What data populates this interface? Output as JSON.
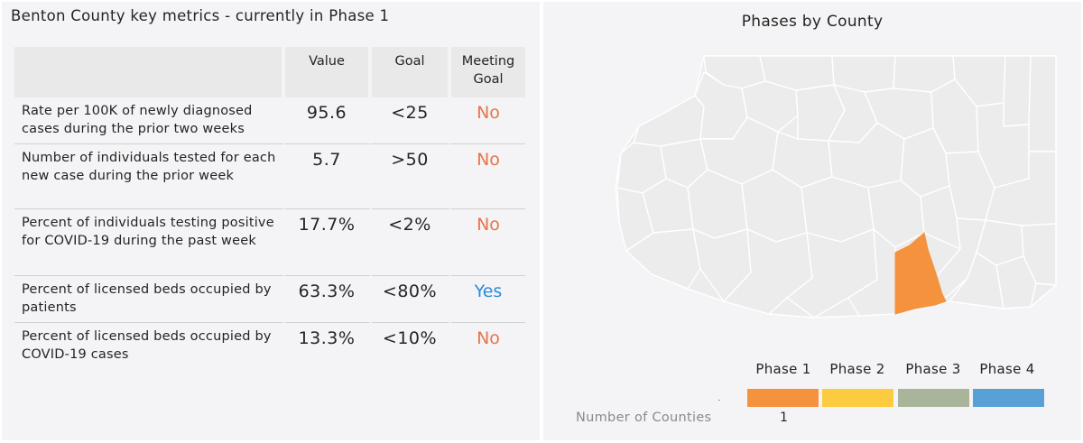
{
  "metrics": {
    "title": "Benton County key metrics - currently in Phase 1",
    "headers": {
      "metric": "",
      "value": "Value",
      "goal": "Goal",
      "meeting_goal": "Meeting Goal"
    },
    "rows": [
      {
        "metric": "Rate per 100K of newly diagnosed cases during the prior two weeks",
        "value": "95.6",
        "goal": "<25",
        "meeting_goal": "No"
      },
      {
        "metric": "Number of individuals tested for each new case during the prior week",
        "value": "5.7",
        "goal": ">50",
        "meeting_goal": "No"
      },
      {
        "metric": "Percent of individuals testing positive for COVID-19 during the past week",
        "value": "17.7%",
        "goal": "<2%",
        "meeting_goal": "No"
      },
      {
        "metric": "Percent of licensed beds occupied by patients",
        "value": "63.3%",
        "goal": "<80%",
        "meeting_goal": "Yes"
      },
      {
        "metric": "Percent of licensed beds occupied by COVID-19 cases",
        "value": "13.3%",
        "goal": "<10%",
        "meeting_goal": "No"
      }
    ],
    "colors": {
      "no": "#e8744a",
      "yes": "#2b8bd6"
    }
  },
  "map": {
    "title": "Phases by County",
    "county_fill": "#ececec",
    "county_stroke": "#ffffff",
    "highlight_fill": "#f5923e",
    "legend": {
      "phases": [
        {
          "label": "Phase 1",
          "color": "#f5923e"
        },
        {
          "label": "Phase 2",
          "color": "#fdcb3f"
        },
        {
          "label": "Phase 3",
          "color": "#a9b59a"
        },
        {
          "label": "Phase 4",
          "color": "#58a0d6"
        }
      ],
      "count_label": "Number of Counties",
      "count_value": "1"
    }
  }
}
